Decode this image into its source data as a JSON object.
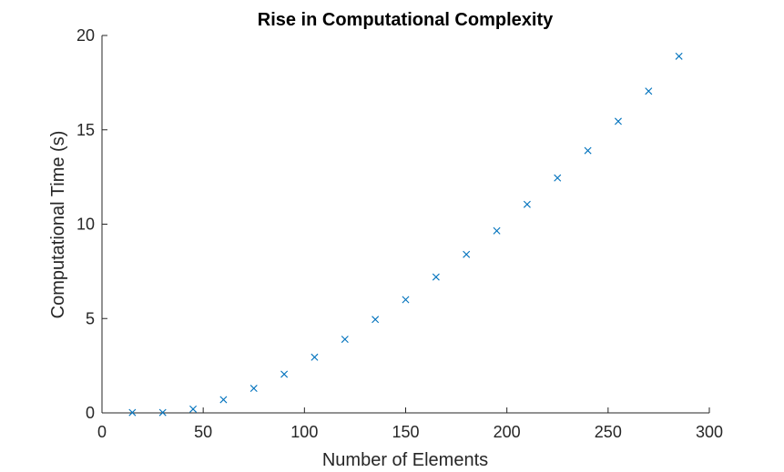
{
  "chart_data": {
    "type": "scatter",
    "title": "Rise in Computational Complexity",
    "xlabel": "Number of Elements",
    "ylabel": "Computational Time (s)",
    "xlim": [
      0,
      300
    ],
    "ylim": [
      0,
      20
    ],
    "x_ticks": [
      "0",
      "50",
      "100",
      "150",
      "200",
      "250",
      "300"
    ],
    "y_ticks": [
      "0",
      "5",
      "10",
      "15",
      "20"
    ],
    "grid": false,
    "legend": false,
    "marker": "x",
    "marker_color": "#0072BD",
    "axis_color": "#262626",
    "series": [
      {
        "x": [
          15,
          30,
          45,
          60,
          75,
          90,
          105,
          120,
          135,
          150,
          165,
          180,
          195,
          210,
          225,
          240,
          255,
          270,
          285
        ],
        "y": [
          0.02,
          0.02,
          0.2,
          0.7,
          1.3,
          2.05,
          2.95,
          3.9,
          4.95,
          6.0,
          7.2,
          8.4,
          9.65,
          11.05,
          12.45,
          13.9,
          15.45,
          17.05,
          18.9
        ]
      }
    ]
  }
}
